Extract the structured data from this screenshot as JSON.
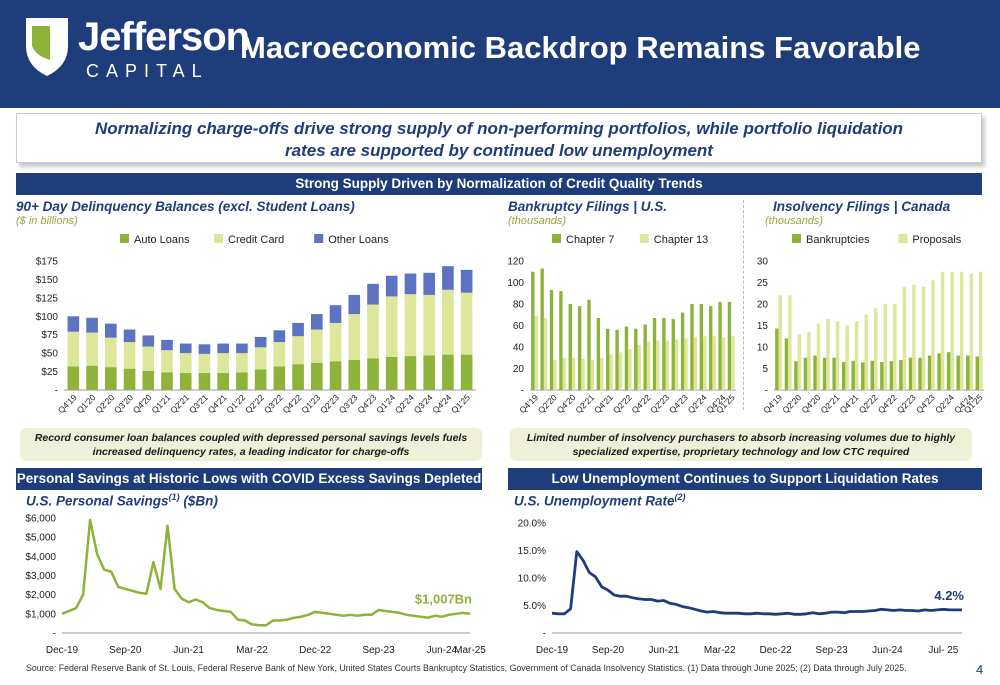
{
  "colors": {
    "navy": "#1f3d7a",
    "green": "#8db33a",
    "lightgreen": "#dde69a",
    "blue": "#5b73c0",
    "accent": "#9aa43a"
  },
  "logo": {
    "name": "Jefferson",
    "sub": "CAPITAL"
  },
  "header": {
    "title": "Macroeconomic Backdrop Remains Favorable"
  },
  "callout": {
    "line1": "Normalizing charge-offs drive strong supply of non-performing portfolios, while portfolio liquidation",
    "line2": "rates are supported by continued low unemployment"
  },
  "bands": {
    "top": "Strong Supply Driven by Normalization of Credit Quality Trends",
    "savings": "Personal Savings at Historic Lows with COVID Excess Savings Depleted",
    "unemployment": "Low Unemployment Continues to Support Liquidation Rates"
  },
  "notes": {
    "left": "Record consumer loan balances coupled with depressed personal savings levels fuels increased delinquency rates, a leading indicator for charge-offs",
    "right": "Limited number of insolvency purchasers to absorb increasing volumes due to highly specialized expertise, proprietary technology and low CTC required"
  },
  "footer": {
    "source": "Source: Federal Reserve Bank of St. Louis, Federal Reserve Bank of New York, United States Courts Bankruptcy Statistics, Government of Canada Insolvency Statistics. (1) Data through June 2025; (2) Data through July 2025.",
    "page": "4"
  },
  "chart_data": [
    {
      "id": "delinquency",
      "type": "bar",
      "stacked": true,
      "title": "90+ Day Delinquency Balances (excl. Student Loans)",
      "units": "($ in billions)",
      "categories": [
        "Q4'19",
        "Q1'20",
        "Q2'20",
        "Q3'20",
        "Q4'20",
        "Q1'21",
        "Q2'21",
        "Q3'21",
        "Q4'21",
        "Q1'22",
        "Q2'22",
        "Q3'22",
        "Q4'22",
        "Q1'23",
        "Q2'23",
        "Q3'23",
        "Q4'23",
        "Q1'24",
        "Q2'24",
        "Q3'24",
        "Q4'24",
        "Q1'25"
      ],
      "tick_labels": [
        "Q4'19",
        "Q1'20",
        "Q2'20",
        "Q3'20",
        "Q4'20",
        "Q1'21",
        "Q2'21",
        "Q3'21",
        "Q4'21",
        "Q1'22",
        "Q2'22",
        "Q3'22",
        "Q4'22",
        "Q1'23",
        "Q2'23",
        "Q3'23",
        "Q4'23",
        "Q1'24",
        "Q2'24",
        "Q3'24",
        "Q4'24",
        "Q1'25"
      ],
      "series": [
        {
          "name": "Auto Loans",
          "color": "#8db33a",
          "values": [
            32,
            33,
            31,
            29,
            26,
            24,
            23,
            23,
            23,
            24,
            28,
            32,
            35,
            37,
            39,
            41,
            43,
            45,
            46,
            47,
            48,
            48
          ]
        },
        {
          "name": "Credit Card",
          "color": "#dde69a",
          "values": [
            47,
            45,
            40,
            36,
            33,
            30,
            27,
            26,
            27,
            26,
            30,
            33,
            38,
            45,
            52,
            62,
            73,
            82,
            84,
            82,
            88,
            84
          ]
        },
        {
          "name": "Other Loans",
          "color": "#5b73c0",
          "values": [
            21,
            20,
            19,
            17,
            15,
            14,
            13,
            13,
            13,
            13,
            14,
            16,
            18,
            21,
            24,
            26,
            28,
            28,
            28,
            30,
            32,
            31
          ]
        }
      ],
      "y_ticks": [
        "$175",
        "$150",
        "$125",
        "$100",
        "$75",
        "$50",
        "$25",
        "-"
      ],
      "ylim": [
        0,
        175
      ]
    },
    {
      "id": "us_bankruptcy",
      "type": "bar",
      "title": "Bankruptcy Filings | U.S.",
      "units": "(thousands)",
      "categories": [
        "Q4'19",
        "Q1'20",
        "Q2'20",
        "Q3'20",
        "Q4'20",
        "Q1'21",
        "Q2'21",
        "Q3'21",
        "Q4'21",
        "Q1'22",
        "Q2'22",
        "Q3'22",
        "Q4'22",
        "Q1'23",
        "Q2'23",
        "Q3'23",
        "Q4'23",
        "Q1'24",
        "Q2'24",
        "Q3'24",
        "Q4'24",
        "Q1'25"
      ],
      "tick_labels": [
        "Q4'19",
        "Q2'20",
        "Q4'20",
        "Q2'21",
        "Q4'21",
        "Q2'22",
        "Q4'22",
        "Q2'23",
        "Q4'23",
        "Q2'24",
        "Q4'24",
        "Q1'25"
      ],
      "series": [
        {
          "name": "Chapter 7",
          "color": "#8db33a",
          "values": [
            110,
            113,
            93,
            92,
            80,
            78,
            84,
            67,
            57,
            56,
            59,
            57,
            61,
            67,
            67,
            66,
            72,
            80,
            80,
            78,
            82,
            82
          ]
        },
        {
          "name": "Chapter 13",
          "color": "#dde69a",
          "values": [
            69,
            67,
            28,
            30,
            30,
            29,
            28,
            30,
            33,
            35,
            38,
            42,
            45,
            46,
            46,
            47,
            48,
            49,
            50,
            50,
            49,
            50
          ]
        }
      ],
      "y_ticks": [
        "120",
        "100",
        "80",
        "60",
        "40",
        "20",
        "-"
      ],
      "ylim": [
        0,
        120
      ]
    },
    {
      "id": "ca_insolvency",
      "type": "bar",
      "title": "Insolvency Filings | Canada",
      "units": "(thousands)",
      "categories": [
        "Q4'19",
        "Q1'20",
        "Q2'20",
        "Q3'20",
        "Q4'20",
        "Q1'21",
        "Q2'21",
        "Q3'21",
        "Q4'21",
        "Q1'22",
        "Q2'22",
        "Q3'22",
        "Q4'22",
        "Q1'23",
        "Q2'23",
        "Q3'23",
        "Q4'23",
        "Q1'24",
        "Q2'24",
        "Q3'24",
        "Q4'24",
        "Q1'25"
      ],
      "tick_labels": [
        "Q4'19",
        "Q2'20",
        "Q4'20",
        "Q2'21",
        "Q4'21",
        "Q2'22",
        "Q4'22",
        "Q2'23",
        "Q4'23",
        "Q2'24",
        "Q4'24",
        "Q1'25"
      ],
      "series": [
        {
          "name": "Bankruptcies",
          "color": "#8db33a",
          "values": [
            14.3,
            12,
            6.7,
            7.5,
            8,
            7.5,
            7.5,
            6.5,
            6.8,
            6.4,
            6.8,
            6.5,
            6.7,
            7,
            7.5,
            7.5,
            8,
            8.5,
            8.8,
            8,
            8,
            7.8
          ]
        },
        {
          "name": "Proposals",
          "color": "#dde69a",
          "values": [
            22,
            22,
            13,
            13.5,
            15.5,
            16.5,
            16,
            15,
            16,
            17.5,
            19,
            20,
            20,
            24,
            24.5,
            24,
            25.5,
            27.5,
            27.5,
            27.5,
            27,
            27.5
          ]
        }
      ],
      "y_ticks": [
        "30",
        "25",
        "20",
        "15",
        "10",
        "5",
        "-"
      ],
      "ylim": [
        0,
        30
      ]
    },
    {
      "id": "personal_savings",
      "type": "line",
      "title": "U.S. Personal Savings",
      "title_sup": "(1)",
      "title_suffix": " ($Bn)",
      "x_ticks": [
        "Dec-19",
        "Sep-20",
        "Jun-21",
        "Mar-22",
        "Dec-22",
        "Sep-23",
        "Jun-24",
        "Mar-25"
      ],
      "y_ticks": [
        "$6,000",
        "$5,000",
        "$4,000",
        "$3,000",
        "$2,000",
        "$1,000",
        "-"
      ],
      "ylim": [
        0,
        6000
      ],
      "start": "Dec-19",
      "values": [
        1000,
        1150,
        1300,
        2000,
        5900,
        4100,
        3300,
        3200,
        2400,
        2300,
        2200,
        2100,
        2050,
        3700,
        2300,
        5600,
        2300,
        1800,
        1600,
        1750,
        1600,
        1300,
        1200,
        1150,
        1100,
        700,
        650,
        450,
        400,
        400,
        650,
        650,
        700,
        800,
        850,
        950,
        1100,
        1050,
        1000,
        950,
        900,
        950,
        900,
        950,
        950,
        1200,
        1150,
        1100,
        1050,
        950,
        900,
        850,
        800,
        900,
        850,
        950,
        1000,
        1050,
        1007
      ],
      "end_label": "$1,007Bn",
      "color": "#8db33a"
    },
    {
      "id": "unemployment",
      "type": "line",
      "title": "U.S. Unemployment Rate",
      "title_sup": "(2)",
      "x_ticks": [
        "Dec-19",
        "Sep-20",
        "Jun-21",
        "Mar-22",
        "Dec-22",
        "Sep-23",
        "Jun-24",
        "Jul- 25"
      ],
      "y_ticks": [
        "20.0%",
        "15.0%",
        "10.0%",
        "5.0%",
        "-"
      ],
      "ylim": [
        0,
        20
      ],
      "start": "Dec-19",
      "values": [
        3.6,
        3.5,
        3.5,
        4.4,
        14.8,
        13.2,
        11.0,
        10.2,
        8.4,
        7.8,
        6.9,
        6.7,
        6.7,
        6.4,
        6.2,
        6.1,
        6.1,
        5.8,
        5.9,
        5.4,
        5.2,
        4.8,
        4.6,
        4.3,
        4.0,
        3.8,
        3.9,
        3.7,
        3.6,
        3.6,
        3.6,
        3.5,
        3.5,
        3.6,
        3.5,
        3.5,
        3.4,
        3.5,
        3.6,
        3.4,
        3.4,
        3.5,
        3.7,
        3.5,
        3.6,
        3.8,
        3.8,
        3.7,
        3.9,
        3.9,
        3.9,
        4.0,
        4.1,
        4.3,
        4.2,
        4.1,
        4.2,
        4.1,
        4.1,
        4.0,
        4.2,
        4.1,
        4.2,
        4.3,
        4.2,
        4.2,
        4.2
      ],
      "end_label": "4.2%",
      "color": "#1f3d7a"
    }
  ]
}
